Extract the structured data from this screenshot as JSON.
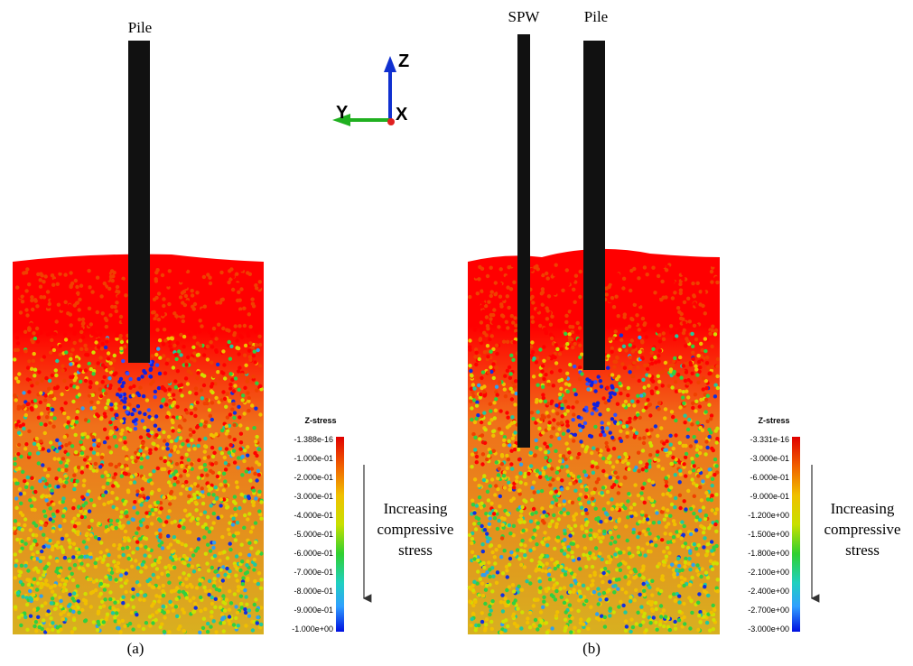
{
  "panels": [
    {
      "caption": "(a)",
      "labels": [
        "Pile"
      ],
      "legend": {
        "title": "Z-stress",
        "ticks": [
          "-1.388e-16",
          "-1.000e-01",
          "-2.000e-01",
          "-3.000e-01",
          "-4.000e-01",
          "-5.000e-01",
          "-6.000e-01",
          "-7.000e-01",
          "-8.000e-01",
          "-9.000e-01",
          "-1.000e+00"
        ],
        "note": [
          "Increasing",
          "compressive",
          "stress"
        ]
      }
    },
    {
      "caption": "(b)",
      "labels": [
        "SPW",
        "Pile"
      ],
      "legend": {
        "title": "Z-stress",
        "ticks": [
          "-3.331e-16",
          "-3.000e-01",
          "-6.000e-01",
          "-9.000e-01",
          "-1.200e+00",
          "-1.500e+00",
          "-1.800e+00",
          "-2.100e+00",
          "-2.400e+00",
          "-2.700e+00",
          "-3.000e+00"
        ],
        "note": [
          "Increasing",
          "compressive",
          "stress"
        ]
      }
    }
  ],
  "axes": {
    "z": "Z",
    "y": "Y",
    "x": "X"
  }
}
